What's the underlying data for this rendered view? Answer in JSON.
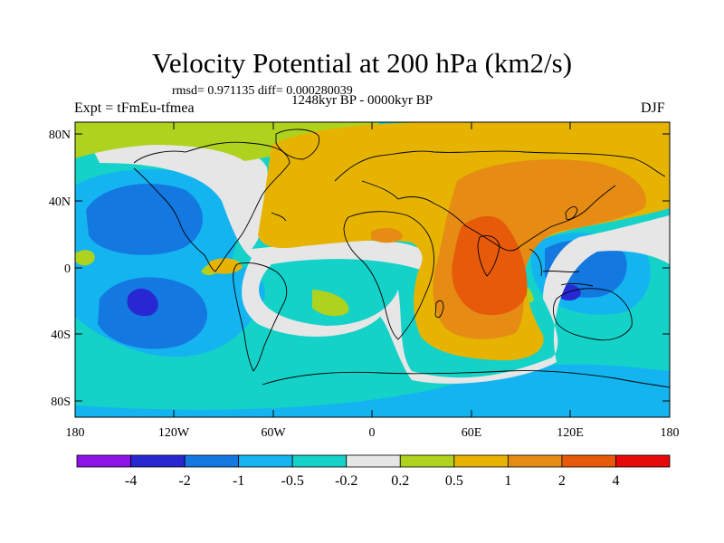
{
  "title": "Velocity Potential at 200 hPa (km2/s)",
  "stats": "rmsd= 0.971135 diff= 0.000280039",
  "left_label": "Expt = tFmEu-tfmea",
  "center_label": "1248kyr BP - 0000kyr BP",
  "right_label": "DJF",
  "lat_labels": [
    "80N",
    "40N",
    "0",
    "40S",
    "80S"
  ],
  "lon_labels": [
    "180",
    "120W",
    "60W",
    "0",
    "60E",
    "120E",
    "180"
  ],
  "colorbar": {
    "colors": [
      "#8c14e6",
      "#2828d2",
      "#1478e1",
      "#14b4f0",
      "#14d2c8",
      "#e6e6e6",
      "#afd21e",
      "#e6b400",
      "#e68c14",
      "#e65a0a",
      "#e60a0a"
    ],
    "labels": [
      "-4",
      "-2",
      "-1",
      "-0.5",
      "-0.2",
      "0.2",
      "0.5",
      "1",
      "2",
      "4"
    ]
  }
}
